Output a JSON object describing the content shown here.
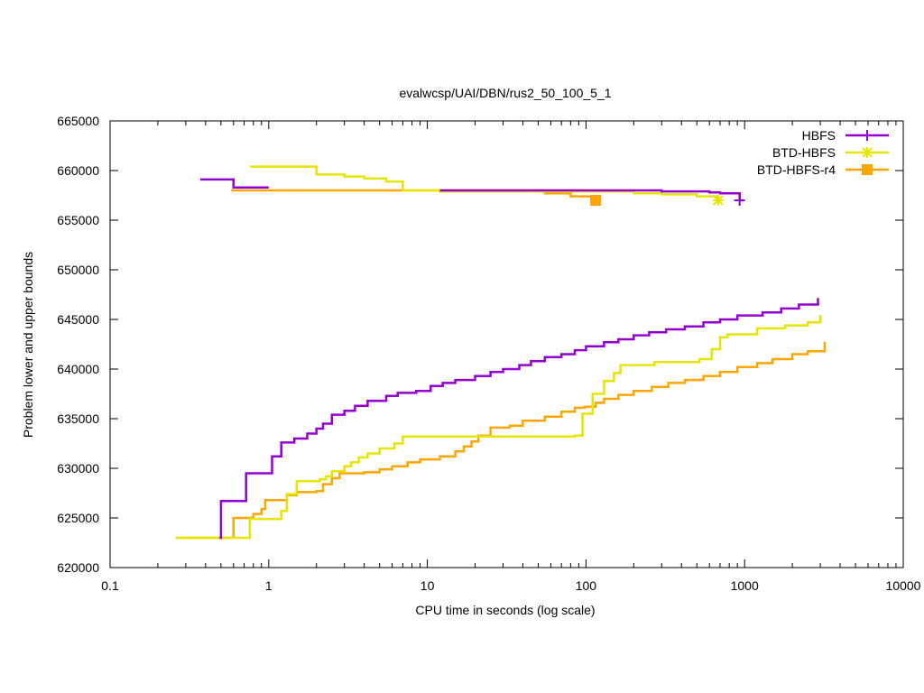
{
  "chart_data": {
    "type": "line",
    "title": "evalwcsp/UAI/DBN/rus2_50_100_5_1",
    "xlabel": "CPU time in seconds (log scale)",
    "ylabel": "Problem lower and upper bounds",
    "x_scale": "log",
    "xlim": [
      0.1,
      10000
    ],
    "ylim": [
      620000,
      665000
    ],
    "x_ticks": [
      0.1,
      1,
      10,
      100,
      1000,
      10000
    ],
    "x_tick_labels": [
      "0.1",
      "1",
      "10",
      "100",
      "1000",
      "10000"
    ],
    "y_ticks": [
      620000,
      625000,
      630000,
      635000,
      640000,
      645000,
      650000,
      655000,
      660000,
      665000
    ],
    "y_tick_labels": [
      "620000",
      "625000",
      "630000",
      "635000",
      "640000",
      "645000",
      "650000",
      "655000",
      "660000",
      "665000"
    ],
    "grid": false,
    "legend_position": "top-right",
    "series": [
      {
        "name": "HBFS",
        "color": "#9400d3",
        "marker": "plus",
        "lower": [
          [
            0.49,
            623000
          ],
          [
            0.5,
            626700
          ],
          [
            0.72,
            629500
          ],
          [
            1.05,
            631200
          ],
          [
            1.2,
            632600
          ],
          [
            1.45,
            633000
          ],
          [
            1.75,
            633500
          ],
          [
            2.0,
            634000
          ],
          [
            2.2,
            634500
          ],
          [
            2.5,
            635400
          ],
          [
            3.0,
            635800
          ],
          [
            3.5,
            636300
          ],
          [
            4.2,
            636800
          ],
          [
            5.5,
            637300
          ],
          [
            6.5,
            637600
          ],
          [
            8.5,
            637800
          ],
          [
            10.5,
            638300
          ],
          [
            12.5,
            638600
          ],
          [
            15,
            638900
          ],
          [
            20,
            639300
          ],
          [
            25,
            639700
          ],
          [
            30,
            640000
          ],
          [
            38,
            640400
          ],
          [
            45,
            640800
          ],
          [
            55,
            641200
          ],
          [
            70,
            641500
          ],
          [
            85,
            641900
          ],
          [
            100,
            642300
          ],
          [
            130,
            642700
          ],
          [
            160,
            643000
          ],
          [
            200,
            643400
          ],
          [
            250,
            643700
          ],
          [
            320,
            644000
          ],
          [
            420,
            644300
          ],
          [
            550,
            644700
          ],
          [
            700,
            645000
          ],
          [
            900,
            645400
          ],
          [
            1300,
            645700
          ],
          [
            1700,
            646100
          ],
          [
            2200,
            646500
          ],
          [
            2900,
            646700
          ]
        ],
        "upper": [
          [
            0.37,
            659100
          ],
          [
            0.6,
            658300
          ],
          [
            1.0,
            658300
          ]
        ],
        "upper2": [
          [
            12,
            658000
          ],
          [
            200,
            658000
          ],
          [
            300,
            657900
          ],
          [
            600,
            657800
          ],
          [
            700,
            657700
          ],
          [
            830,
            657700
          ],
          [
            930,
            657000
          ]
        ],
        "marker_point": [
          930,
          657000
        ]
      },
      {
        "name": "BTD-HBFS",
        "color": "#e5e500",
        "marker": "star",
        "lower": [
          [
            0.26,
            623000
          ],
          [
            0.75,
            623000
          ],
          [
            0.76,
            624900
          ],
          [
            1.2,
            625700
          ],
          [
            1.3,
            627400
          ],
          [
            1.5,
            628700
          ],
          [
            2.0,
            628700
          ],
          [
            2.1,
            628900
          ],
          [
            2.3,
            629200
          ],
          [
            2.5,
            629700
          ],
          [
            3.0,
            630200
          ],
          [
            3.3,
            630600
          ],
          [
            3.7,
            631100
          ],
          [
            4.2,
            631500
          ],
          [
            5.0,
            632000
          ],
          [
            6.2,
            632500
          ],
          [
            7.0,
            633200
          ],
          [
            20,
            633200
          ],
          [
            40,
            633200
          ],
          [
            85,
            633300
          ],
          [
            95,
            635500
          ],
          [
            110,
            637500
          ],
          [
            130,
            638800
          ],
          [
            150,
            639600
          ],
          [
            165,
            640400
          ],
          [
            270,
            640700
          ],
          [
            520,
            641000
          ],
          [
            620,
            642000
          ],
          [
            700,
            643200
          ],
          [
            780,
            643500
          ],
          [
            1200,
            644100
          ],
          [
            1800,
            644400
          ],
          [
            2500,
            644700
          ],
          [
            3000,
            645000
          ]
        ],
        "upper": [
          [
            0.76,
            660400
          ],
          [
            1.9,
            660400
          ],
          [
            2.0,
            659600
          ],
          [
            3.0,
            659400
          ],
          [
            4.0,
            659200
          ],
          [
            5.5,
            658900
          ],
          [
            7.0,
            658000
          ],
          [
            12,
            657900
          ],
          [
            40,
            657900
          ],
          [
            100,
            657900
          ],
          [
            200,
            657700
          ],
          [
            300,
            657600
          ],
          [
            500,
            657400
          ],
          [
            680,
            657000
          ]
        ],
        "marker_point": [
          680,
          657000
        ]
      },
      {
        "name": "BTD-HBFS-r4",
        "color": "#ffa500",
        "marker": "square",
        "lower": [
          [
            0.26,
            623000
          ],
          [
            0.58,
            623000
          ],
          [
            0.6,
            625000
          ],
          [
            0.8,
            625400
          ],
          [
            0.9,
            625900
          ],
          [
            0.95,
            626800
          ],
          [
            1.3,
            627300
          ],
          [
            1.5,
            627600
          ],
          [
            2.0,
            627700
          ],
          [
            2.2,
            628400
          ],
          [
            2.5,
            629000
          ],
          [
            2.8,
            629500
          ],
          [
            4.0,
            629600
          ],
          [
            5.0,
            629900
          ],
          [
            6.0,
            630200
          ],
          [
            7.5,
            630600
          ],
          [
            9.0,
            630900
          ],
          [
            12,
            631200
          ],
          [
            15,
            631700
          ],
          [
            17,
            632200
          ],
          [
            19,
            632700
          ],
          [
            21,
            633300
          ],
          [
            25,
            634100
          ],
          [
            33,
            634300
          ],
          [
            40,
            634800
          ],
          [
            55,
            635200
          ],
          [
            70,
            635700
          ],
          [
            85,
            636100
          ],
          [
            98,
            636200
          ],
          [
            115,
            636600
          ],
          [
            130,
            637000
          ],
          [
            160,
            637400
          ],
          [
            200,
            637800
          ],
          [
            260,
            638200
          ],
          [
            330,
            638600
          ],
          [
            420,
            638900
          ],
          [
            550,
            639300
          ],
          [
            700,
            639700
          ],
          [
            900,
            640200
          ],
          [
            1200,
            640600
          ],
          [
            1500,
            641000
          ],
          [
            2000,
            641500
          ],
          [
            2500,
            641800
          ],
          [
            3200,
            642300
          ]
        ],
        "upper": [
          [
            0.58,
            658000
          ],
          [
            10,
            658000
          ],
          [
            100,
            658000
          ],
          [
            55,
            657700
          ],
          [
            80,
            657400
          ],
          [
            115,
            657000
          ]
        ],
        "marker_point": [
          115,
          657000
        ]
      }
    ]
  }
}
